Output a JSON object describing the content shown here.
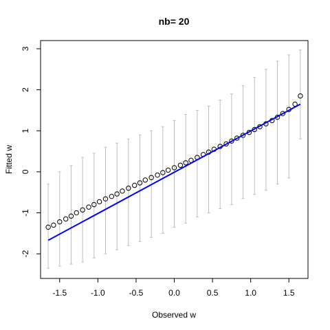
{
  "chart_data": {
    "type": "scatter",
    "title": "nb= 20",
    "xlabel": "Observed w",
    "ylabel": "Fitted w",
    "xlim": [
      -1.75,
      1.75
    ],
    "ylim": [
      -2.6,
      3.2
    ],
    "x_ticks": [
      -1.5,
      -1.0,
      -0.5,
      0.0,
      0.5,
      1.0,
      1.5
    ],
    "x_tick_labels": [
      "-1.5",
      "-1.0",
      "-0.5",
      "0.0",
      "0.5",
      "1.0",
      "1.5"
    ],
    "y_ticks": [
      -2,
      -1,
      0,
      1,
      2,
      3
    ],
    "y_tick_labels": [
      "-2",
      "-1",
      "0",
      "1",
      "2",
      "3"
    ],
    "grid": false,
    "legend": "none",
    "series": [
      {
        "kind": "points",
        "marker": "open-circle",
        "color": "#000000",
        "x": [
          -1.65,
          -1.58,
          -1.5,
          -1.42,
          -1.35,
          -1.28,
          -1.2,
          -1.12,
          -1.05,
          -0.98,
          -0.9,
          -0.82,
          -0.75,
          -0.68,
          -0.6,
          -0.52,
          -0.45,
          -0.38,
          -0.3,
          -0.22,
          -0.15,
          -0.08,
          0.0,
          0.08,
          0.15,
          0.22,
          0.3,
          0.38,
          0.45,
          0.52,
          0.6,
          0.68,
          0.75,
          0.82,
          0.9,
          0.98,
          1.05,
          1.12,
          1.2,
          1.28,
          1.35,
          1.42,
          1.5,
          1.58,
          1.65
        ],
        "y": [
          -1.35,
          -1.3,
          -1.22,
          -1.15,
          -1.08,
          -1.0,
          -0.93,
          -0.86,
          -0.8,
          -0.73,
          -0.66,
          -0.6,
          -0.54,
          -0.47,
          -0.4,
          -0.33,
          -0.27,
          -0.2,
          -0.14,
          -0.08,
          -0.02,
          0.04,
          0.1,
          0.16,
          0.22,
          0.28,
          0.35,
          0.42,
          0.48,
          0.55,
          0.62,
          0.68,
          0.75,
          0.82,
          0.89,
          0.96,
          1.03,
          1.1,
          1.17,
          1.25,
          1.33,
          1.42,
          1.52,
          1.65,
          1.85
        ]
      },
      {
        "kind": "error-bars",
        "color": "#bebebe",
        "x": [
          -1.65,
          -1.5,
          -1.35,
          -1.2,
          -1.05,
          -0.9,
          -0.75,
          -0.6,
          -0.45,
          -0.3,
          -0.15,
          0.0,
          0.15,
          0.3,
          0.45,
          0.6,
          0.75,
          0.9,
          1.05,
          1.2,
          1.35,
          1.5,
          1.65
        ],
        "lower": [
          -2.35,
          -2.3,
          -2.25,
          -2.2,
          -2.1,
          -2.0,
          -1.9,
          -1.8,
          -1.7,
          -1.6,
          -1.5,
          -1.35,
          -1.25,
          -1.1,
          -1.0,
          -0.9,
          -0.8,
          -0.65,
          -0.55,
          -0.45,
          -0.3,
          -0.15,
          0.8
        ],
        "upper": [
          -0.3,
          0.0,
          0.15,
          0.35,
          0.45,
          0.6,
          0.7,
          0.8,
          0.9,
          1.0,
          1.1,
          1.25,
          1.4,
          1.5,
          1.6,
          1.75,
          1.9,
          2.1,
          2.3,
          2.5,
          2.7,
          2.85,
          2.97
        ]
      },
      {
        "kind": "line",
        "color": "#0000ff",
        "x": [
          -1.65,
          1.65
        ],
        "y": [
          -1.67,
          1.65
        ]
      }
    ]
  }
}
